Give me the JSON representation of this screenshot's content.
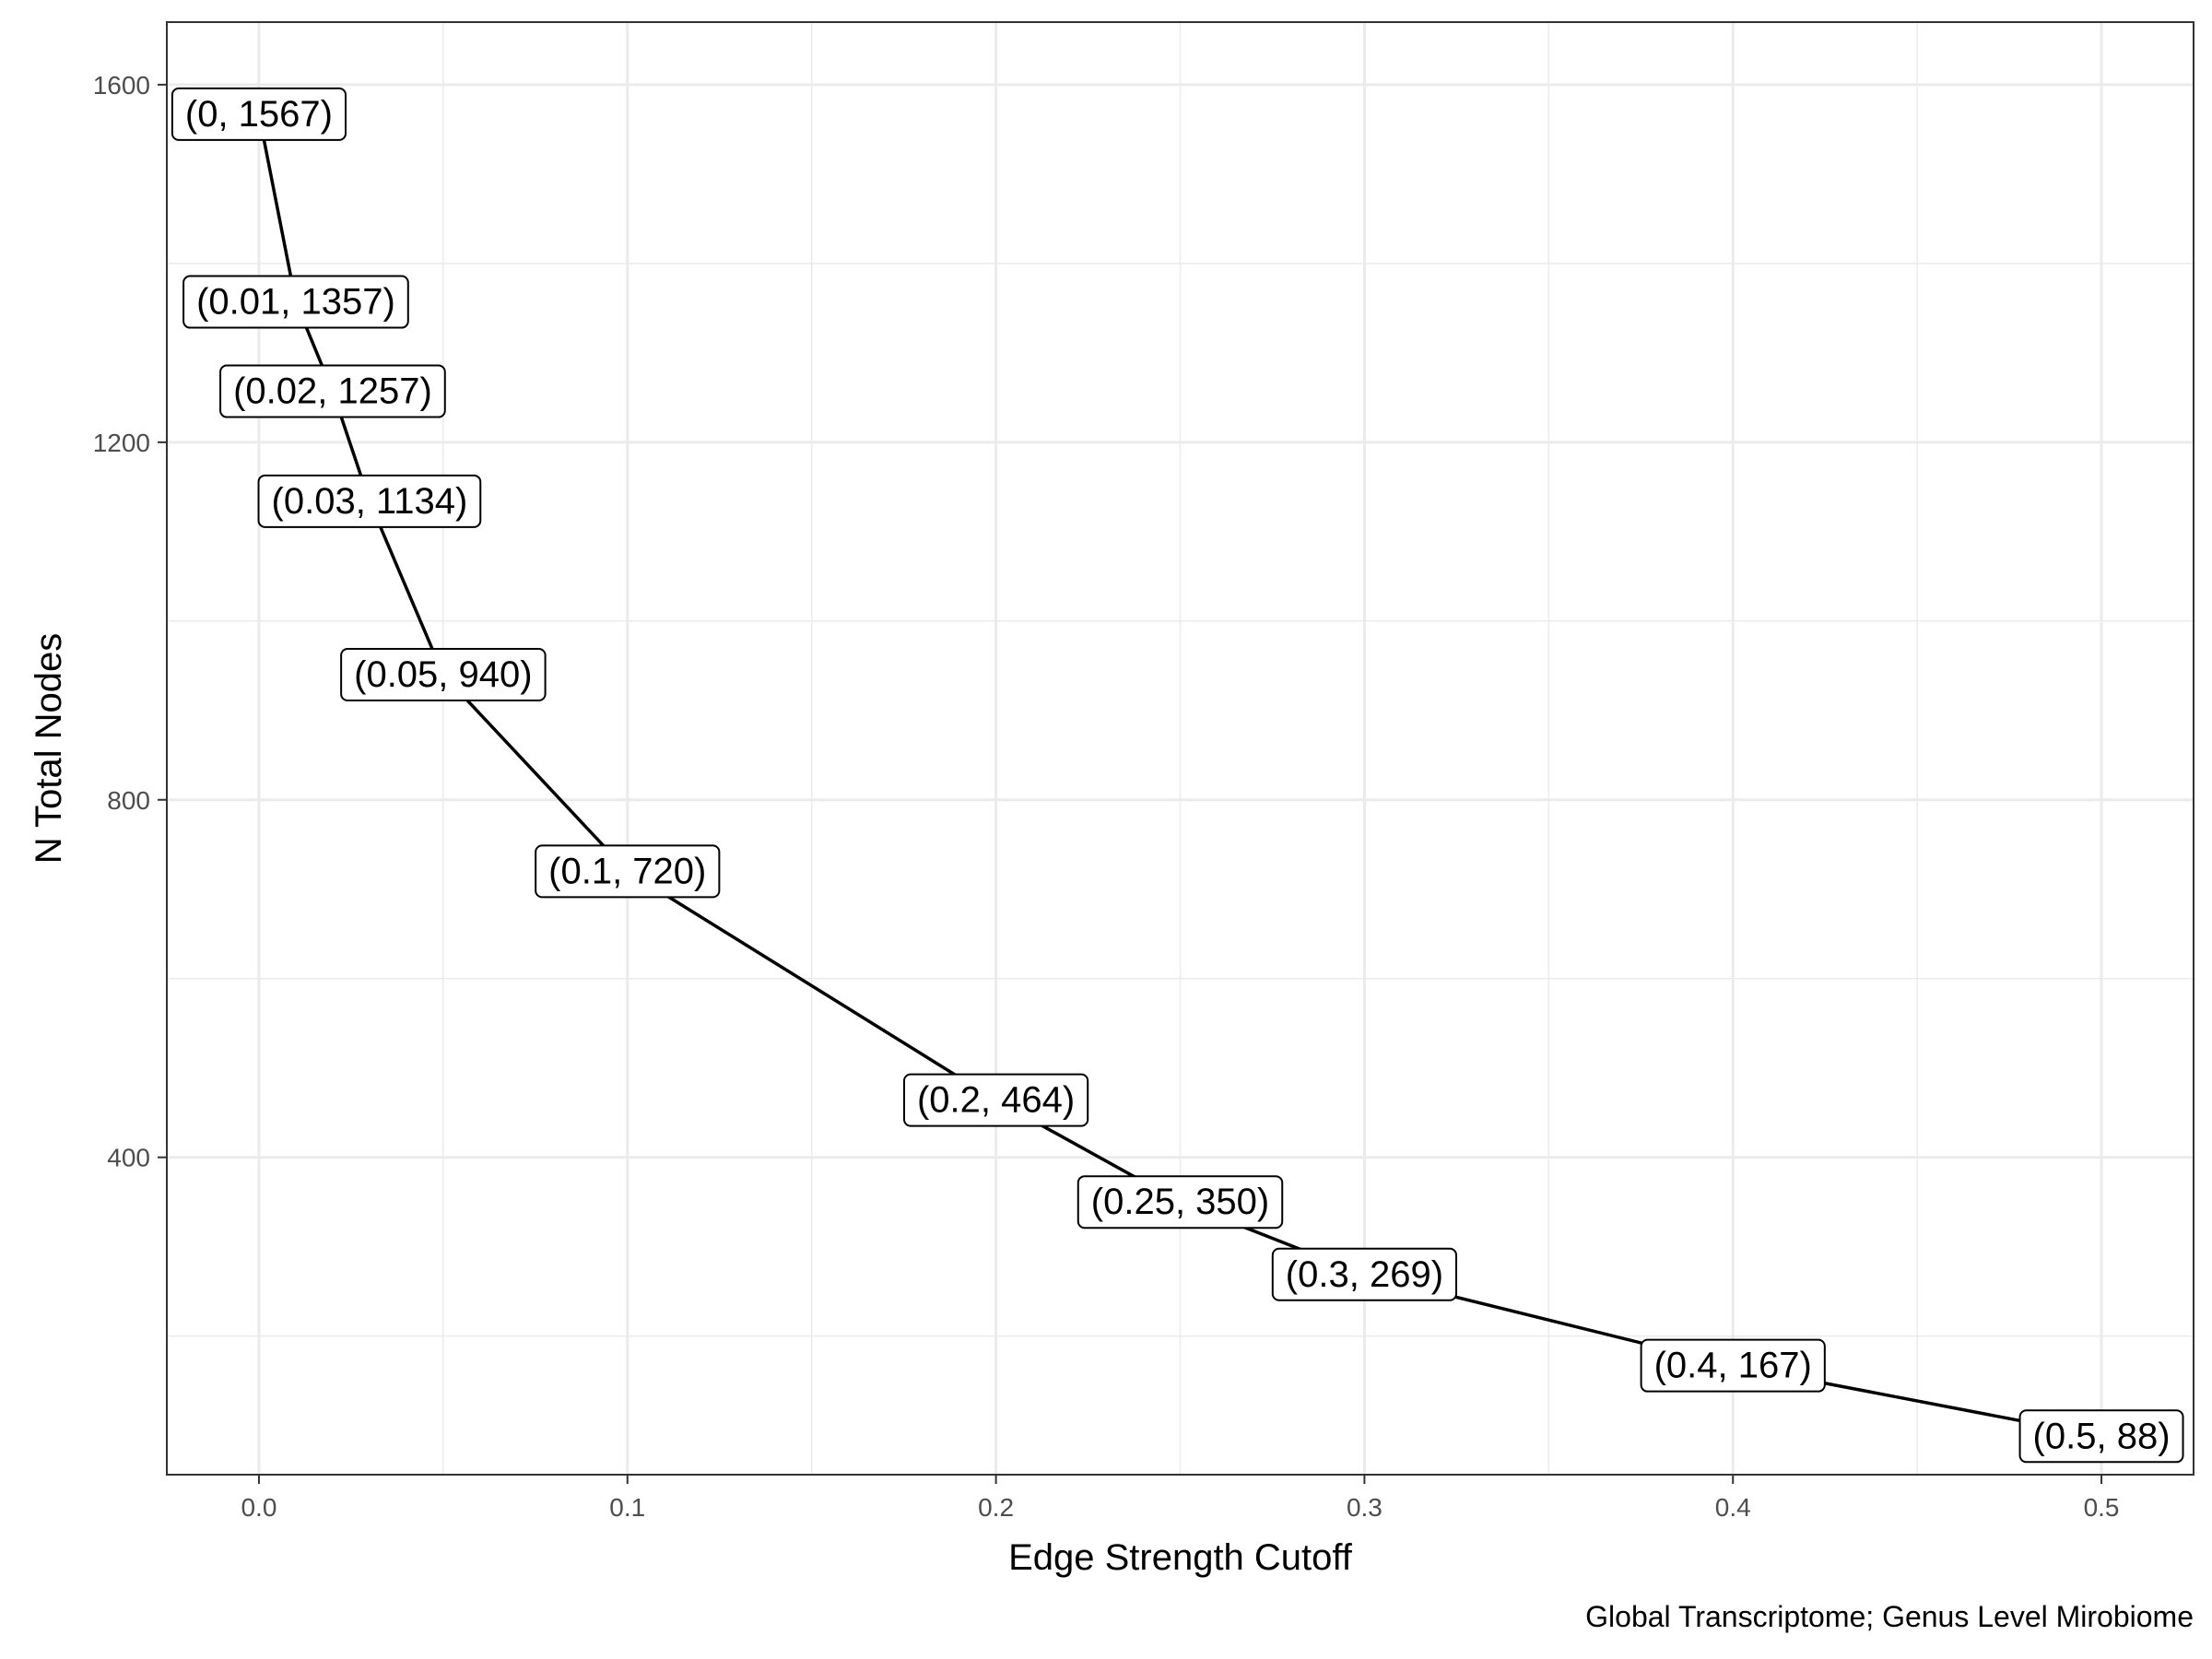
{
  "chart_data": {
    "type": "line",
    "title": "",
    "xlabel": "Edge Strength Cutoff",
    "ylabel": "N Total Nodes",
    "caption": "Global Transcriptome; Genus Level Mirobiome",
    "xlim": [
      -0.025,
      0.525
    ],
    "ylim": [
      45,
      1670
    ],
    "x_ticks": [
      0.0,
      0.1,
      0.2,
      0.3,
      0.4,
      0.5
    ],
    "x_tick_labels": [
      "0.0",
      "0.1",
      "0.2",
      "0.3",
      "0.4",
      "0.5"
    ],
    "y_ticks": [
      400,
      800,
      1200,
      1600
    ],
    "y_tick_labels": [
      "400",
      "800",
      "1200",
      "1600"
    ],
    "grid": true,
    "legend": "none",
    "line_color": "#000000",
    "grid_color": "#ebebeb",
    "x": [
      0,
      0.01,
      0.02,
      0.03,
      0.05,
      0.1,
      0.2,
      0.25,
      0.3,
      0.4,
      0.5
    ],
    "y": [
      1567,
      1357,
      1257,
      1134,
      940,
      720,
      464,
      350,
      269,
      167,
      88
    ],
    "point_labels": [
      "(0, 1567)",
      "(0.01, 1357)",
      "(0.02, 1257)",
      "(0.03, 1134)",
      "(0.05, 940)",
      "(0.1, 720)",
      "(0.2, 464)",
      "(0.25, 350)",
      "(0.3, 269)",
      "(0.4, 167)",
      "(0.5, 88)"
    ]
  }
}
